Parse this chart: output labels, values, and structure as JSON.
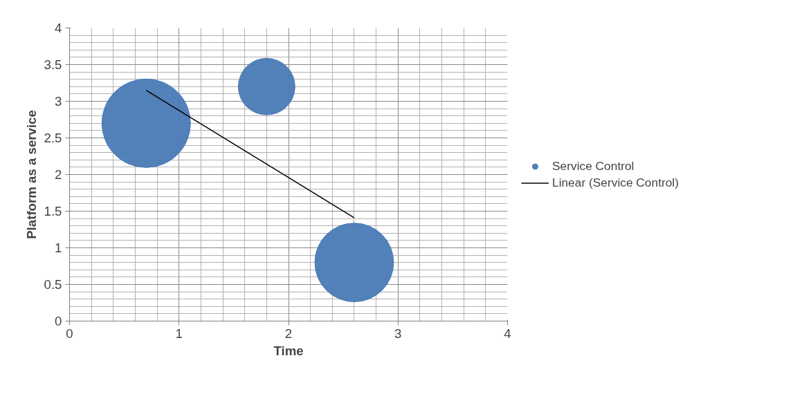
{
  "chart_data": {
    "type": "bubble",
    "xlabel": "Time",
    "ylabel": "Platform as a service",
    "series": [
      {
        "name": "Service Control",
        "color": "#4a7ab5",
        "x": [
          0.7,
          1.8,
          2.6
        ],
        "values": [
          2.7,
          3.2,
          0.8
        ],
        "sizes": [
          1,
          0.41,
          0.79
        ]
      },
      {
        "name": "Linear (Service Control)",
        "type": "line",
        "color": "#000000",
        "x": [
          0.7,
          2.6
        ],
        "values": [
          3.15,
          1.41
        ]
      }
    ],
    "xlim": [
      0,
      4
    ],
    "xticks": [
      0,
      1,
      2,
      3,
      4
    ],
    "ylim": [
      0,
      4
    ],
    "yticks": [
      0,
      0.5,
      1,
      1.5,
      2,
      2.5,
      3,
      3.5,
      4
    ],
    "grid": true,
    "legend": "right"
  }
}
